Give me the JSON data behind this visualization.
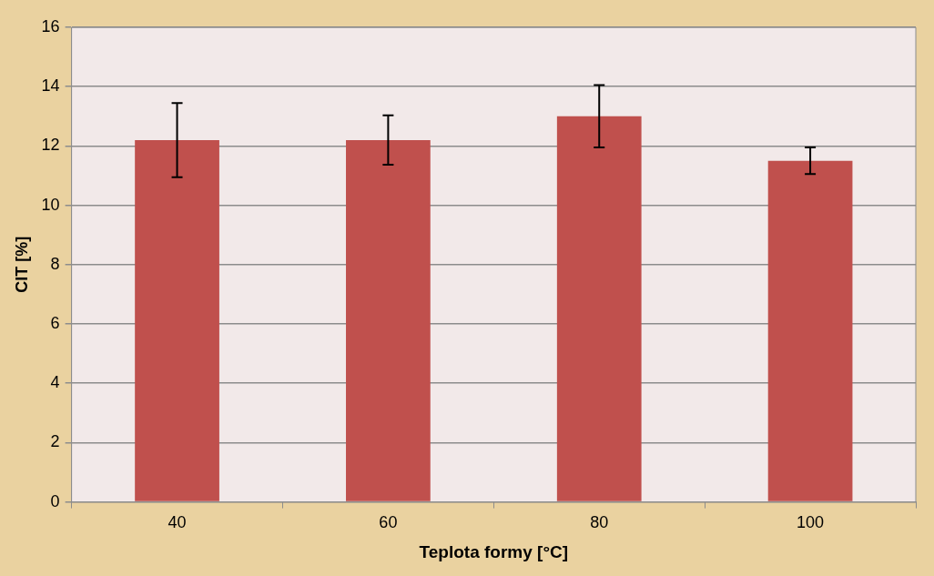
{
  "chart_data": {
    "type": "bar",
    "xlabel": "Teplota formy [°C]",
    "ylabel": "CIT [%]",
    "categories": [
      "40",
      "60",
      "80",
      "100"
    ],
    "values": [
      12.2,
      12.2,
      13.0,
      11.5
    ],
    "errors": [
      1.25,
      0.83,
      1.05,
      0.45
    ],
    "color": "#c0504d",
    "ylim": [
      0,
      16
    ],
    "yticks": [
      0,
      2,
      4,
      6,
      8,
      10,
      12,
      14,
      16
    ],
    "grid": "y",
    "legend": false
  }
}
